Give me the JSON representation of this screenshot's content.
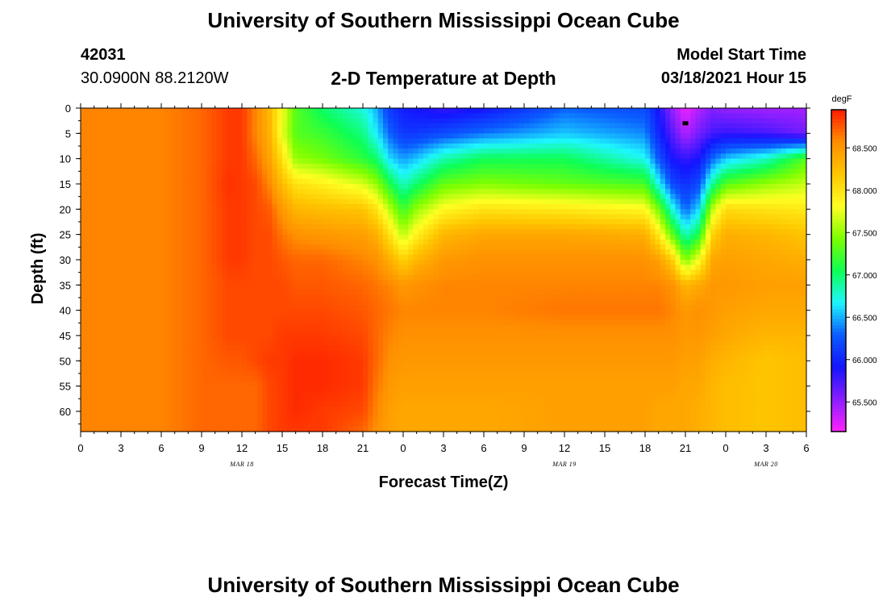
{
  "page": {
    "title_top": "University of Southern Mississippi Ocean Cube",
    "title_bottom": "University of Southern Mississippi Ocean Cube",
    "station_id": "42031",
    "station_coords": "30.0900N 88.2120W",
    "subtitle": "2-D Temperature at Depth",
    "model_start_label": "Model Start Time",
    "model_start_value": "03/18/2021 Hour 15"
  },
  "colors": {
    "ramp": [
      "#ff22ff",
      "#8a1fff",
      "#1414ff",
      "#0a5cff",
      "#1ef6ff",
      "#0dff54",
      "#7dff00",
      "#ffff22",
      "#ffc600",
      "#ff8e00",
      "#ff1b00"
    ]
  },
  "chart_data": {
    "type": "heatmap",
    "xlabel": "Forecast Time(Z)",
    "ylabel": "Depth (ft)",
    "x_tick_labels": [
      "0",
      "3",
      "6",
      "9",
      "12",
      "15",
      "18",
      "21",
      "0",
      "3",
      "6",
      "9",
      "12",
      "15",
      "18",
      "21",
      "0",
      "3",
      "6"
    ],
    "x_range_hours": [
      0,
      54
    ],
    "date_labels": [
      {
        "text": "MAR 18",
        "hour": 12
      },
      {
        "text": "MAR 19",
        "hour": 36
      },
      {
        "text": "MAR 20",
        "hour": 51
      }
    ],
    "y_ticks": [
      0,
      5,
      10,
      15,
      20,
      25,
      30,
      35,
      40,
      45,
      50,
      55,
      60
    ],
    "y_range": [
      0,
      64
    ],
    "y_reversed": true,
    "colorbar": {
      "unit": "degF",
      "ticks": [
        "65.500",
        "66.000",
        "66.500",
        "67.000",
        "67.500",
        "68.000",
        "68.500"
      ],
      "tick_values": [
        65.5,
        66.0,
        66.5,
        67.0,
        67.5,
        68.0,
        68.5
      ],
      "range": [
        65.15,
        68.95
      ]
    },
    "marker": {
      "hour": 45,
      "depth": 3
    },
    "hours": [
      0,
      6,
      9,
      11,
      12,
      13,
      14,
      15,
      16,
      18,
      21,
      22,
      23,
      24,
      25,
      27,
      30,
      36,
      42,
      43,
      44,
      45,
      46,
      47,
      48,
      51,
      54
    ],
    "depths": [
      0,
      5,
      10,
      15,
      20,
      25,
      30,
      35,
      40,
      45,
      50,
      55,
      60,
      64
    ],
    "values": [
      [
        68.6,
        68.6,
        68.6,
        68.6,
        68.6,
        68.6,
        68.6,
        68.6,
        68.6,
        68.6,
        68.6,
        68.6,
        68.6,
        68.6
      ],
      [
        68.6,
        68.6,
        68.6,
        68.6,
        68.6,
        68.6,
        68.6,
        68.6,
        68.6,
        68.6,
        68.6,
        68.6,
        68.6,
        68.6
      ],
      [
        68.7,
        68.7,
        68.7,
        68.7,
        68.7,
        68.7,
        68.7,
        68.7,
        68.7,
        68.7,
        68.7,
        68.7,
        68.7,
        68.7
      ],
      [
        68.85,
        68.85,
        68.85,
        68.88,
        68.85,
        68.85,
        68.85,
        68.8,
        68.8,
        68.8,
        68.75,
        68.7,
        68.7,
        68.7
      ],
      [
        68.85,
        68.85,
        68.85,
        68.85,
        68.85,
        68.85,
        68.85,
        68.8,
        68.8,
        68.8,
        68.75,
        68.7,
        68.7,
        68.7
      ],
      [
        68.6,
        68.6,
        68.7,
        68.8,
        68.8,
        68.8,
        68.8,
        68.8,
        68.8,
        68.8,
        68.8,
        68.7,
        68.7,
        68.7
      ],
      [
        68.3,
        68.35,
        68.45,
        68.6,
        68.75,
        68.8,
        68.8,
        68.8,
        68.8,
        68.8,
        68.85,
        68.8,
        68.8,
        68.8
      ],
      [
        67.8,
        67.75,
        68.0,
        68.25,
        68.5,
        68.65,
        68.75,
        68.8,
        68.8,
        68.85,
        68.85,
        68.85,
        68.85,
        68.85
      ],
      [
        67.3,
        67.3,
        67.5,
        68.0,
        68.3,
        68.55,
        68.7,
        68.75,
        68.8,
        68.85,
        68.9,
        68.9,
        68.9,
        68.85
      ],
      [
        67.0,
        67.2,
        67.4,
        67.9,
        68.25,
        68.5,
        68.7,
        68.75,
        68.8,
        68.85,
        68.9,
        68.9,
        68.85,
        68.85
      ],
      [
        66.75,
        66.95,
        67.15,
        67.7,
        68.2,
        68.45,
        68.6,
        68.7,
        68.75,
        68.8,
        68.85,
        68.85,
        68.8,
        68.7
      ],
      [
        66.5,
        66.65,
        67.0,
        67.5,
        68.0,
        68.35,
        68.55,
        68.65,
        68.7,
        68.7,
        68.7,
        68.65,
        68.6,
        68.55
      ],
      [
        66.1,
        66.3,
        66.6,
        67.1,
        67.6,
        68.0,
        68.35,
        68.6,
        68.65,
        68.6,
        68.55,
        68.5,
        68.45,
        68.45
      ],
      [
        65.95,
        66.1,
        66.45,
        66.8,
        67.2,
        67.6,
        68.1,
        68.5,
        68.6,
        68.55,
        68.5,
        68.45,
        68.4,
        68.4
      ],
      [
        65.9,
        66.1,
        66.55,
        67.0,
        67.5,
        67.9,
        68.3,
        68.55,
        68.6,
        68.55,
        68.5,
        68.45,
        68.4,
        68.4
      ],
      [
        65.8,
        66.2,
        66.85,
        67.35,
        67.85,
        68.3,
        68.5,
        68.6,
        68.6,
        68.55,
        68.5,
        68.45,
        68.4,
        68.4
      ],
      [
        65.9,
        66.35,
        67.05,
        67.45,
        68.0,
        68.4,
        68.55,
        68.6,
        68.6,
        68.55,
        68.5,
        68.45,
        68.4,
        68.4
      ],
      [
        66.3,
        66.55,
        67.05,
        67.35,
        67.95,
        68.4,
        68.55,
        68.6,
        68.65,
        68.55,
        68.5,
        68.45,
        68.45,
        68.45
      ],
      [
        66.2,
        66.4,
        66.7,
        67.25,
        67.85,
        68.35,
        68.55,
        68.6,
        68.65,
        68.55,
        68.5,
        68.45,
        68.45,
        68.45
      ],
      [
        65.9,
        66.0,
        66.25,
        66.7,
        67.4,
        67.95,
        68.45,
        68.6,
        68.65,
        68.55,
        68.5,
        68.45,
        68.4,
        68.4
      ],
      [
        65.5,
        65.7,
        65.9,
        66.2,
        66.75,
        67.35,
        68.15,
        68.55,
        68.6,
        68.55,
        68.5,
        68.45,
        68.4,
        68.4
      ],
      [
        65.2,
        65.4,
        65.8,
        66.05,
        66.3,
        66.8,
        67.4,
        68.3,
        68.5,
        68.5,
        68.45,
        68.4,
        68.4,
        68.4
      ],
      [
        65.4,
        65.6,
        65.9,
        66.2,
        66.6,
        67.1,
        67.8,
        68.4,
        68.55,
        68.5,
        68.45,
        68.4,
        68.35,
        68.35
      ],
      [
        65.55,
        65.75,
        66.3,
        66.9,
        67.6,
        68.1,
        68.4,
        68.5,
        68.5,
        68.45,
        68.35,
        68.3,
        68.3,
        68.3
      ],
      [
        65.5,
        65.8,
        66.55,
        67.3,
        68.05,
        68.35,
        68.45,
        68.5,
        68.45,
        68.4,
        68.3,
        68.25,
        68.25,
        68.25
      ],
      [
        65.45,
        65.75,
        66.8,
        67.5,
        68.0,
        68.3,
        68.4,
        68.45,
        68.4,
        68.3,
        68.2,
        68.2,
        68.2,
        68.2
      ],
      [
        65.45,
        65.6,
        67.3,
        67.65,
        67.95,
        68.2,
        68.35,
        68.45,
        68.4,
        68.3,
        68.25,
        68.25,
        68.25,
        68.25
      ]
    ]
  }
}
